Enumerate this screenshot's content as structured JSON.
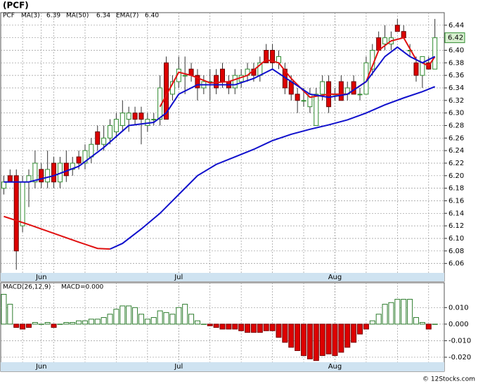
{
  "chart_data": [
    {
      "type": "candlestick",
      "title": "(PCF)",
      "symbol": "PCF",
      "open": [
        6.18,
        6.2,
        6.2,
        6.12,
        6.19,
        6.19,
        6.21,
        6.19,
        6.22,
        6.19,
        6.22,
        6.21,
        6.23,
        6.22,
        6.23,
        6.27,
        6.25,
        6.26,
        6.27,
        6.28,
        6.29,
        6.3,
        6.3,
        6.28,
        6.29,
        6.29,
        6.38,
        6.33,
        6.35,
        6.36,
        6.37,
        6.36,
        6.34,
        6.35,
        6.36,
        6.37,
        6.35,
        6.34,
        6.35,
        6.36,
        6.37,
        6.36,
        6.4,
        6.4,
        6.38,
        6.37,
        6.35,
        6.33,
        6.32,
        6.31,
        6.28,
        6.33,
        6.35,
        6.33,
        6.35,
        6.33,
        6.35,
        6.33,
        6.33,
        6.37,
        6.42,
        6.41,
        6.41,
        6.44,
        6.43,
        6.4,
        6.38,
        6.36,
        6.38,
        6.37
      ],
      "high": [
        6.2,
        6.21,
        6.21,
        6.2,
        6.21,
        6.24,
        6.22,
        6.24,
        6.23,
        6.23,
        6.24,
        6.23,
        6.24,
        6.25,
        6.26,
        6.28,
        6.28,
        6.29,
        6.3,
        6.32,
        6.31,
        6.31,
        6.31,
        6.3,
        6.3,
        6.36,
        6.39,
        6.36,
        6.39,
        6.39,
        6.38,
        6.37,
        6.36,
        6.37,
        6.37,
        6.38,
        6.36,
        6.37,
        6.37,
        6.38,
        6.38,
        6.39,
        6.41,
        6.41,
        6.4,
        6.38,
        6.36,
        6.34,
        6.34,
        6.34,
        6.34,
        6.36,
        6.36,
        6.34,
        6.36,
        6.35,
        6.36,
        6.34,
        6.39,
        6.41,
        6.43,
        6.44,
        6.43,
        6.45,
        6.44,
        6.41,
        6.39,
        6.39,
        6.39,
        6.45
      ],
      "low": [
        6.17,
        6.19,
        6.05,
        6.11,
        6.15,
        6.18,
        6.18,
        6.18,
        6.18,
        6.18,
        6.19,
        6.2,
        6.21,
        6.21,
        6.22,
        6.24,
        6.24,
        6.25,
        6.26,
        6.27,
        6.27,
        6.28,
        6.25,
        6.27,
        6.28,
        6.28,
        6.29,
        6.32,
        6.34,
        6.33,
        6.35,
        6.32,
        6.33,
        6.32,
        6.33,
        6.34,
        6.33,
        6.33,
        6.34,
        6.35,
        6.35,
        6.35,
        6.38,
        6.37,
        6.37,
        6.33,
        6.32,
        6.3,
        6.31,
        6.3,
        6.28,
        6.32,
        6.3,
        6.32,
        6.32,
        6.32,
        6.33,
        6.32,
        6.33,
        6.36,
        6.4,
        6.4,
        6.4,
        6.43,
        6.42,
        6.39,
        6.35,
        6.34,
        6.37,
        6.37
      ],
      "close": [
        6.19,
        6.19,
        6.08,
        6.19,
        6.2,
        6.22,
        6.19,
        6.21,
        6.19,
        6.22,
        6.2,
        6.22,
        6.22,
        6.24,
        6.25,
        6.25,
        6.26,
        6.28,
        6.29,
        6.3,
        6.3,
        6.29,
        6.29,
        6.29,
        6.29,
        6.34,
        6.29,
        6.35,
        6.37,
        6.36,
        6.36,
        6.34,
        6.35,
        6.35,
        6.34,
        6.35,
        6.34,
        6.36,
        6.36,
        6.37,
        6.36,
        6.38,
        6.38,
        6.38,
        6.39,
        6.34,
        6.33,
        6.32,
        6.32,
        6.33,
        6.33,
        6.35,
        6.31,
        6.33,
        6.32,
        6.34,
        6.33,
        6.33,
        6.38,
        6.4,
        6.4,
        6.42,
        6.42,
        6.43,
        6.42,
        6.4,
        6.36,
        6.39,
        6.37,
        6.42
      ],
      "up_color": "#2e8b2e",
      "down_color": "#dd0000",
      "lines": [
        {
          "name": "MA(3)",
          "last": 6.39,
          "color": "#e01010",
          "x": [
            25,
            28,
            30,
            33,
            36,
            39,
            42,
            44,
            46,
            49,
            52,
            55,
            58,
            60,
            62,
            64,
            66,
            68,
            69
          ],
          "values": [
            6.31,
            6.365,
            6.36,
            6.348,
            6.35,
            6.36,
            6.385,
            6.38,
            6.355,
            6.325,
            6.33,
            6.33,
            6.35,
            6.4,
            6.415,
            6.42,
            6.385,
            6.375,
            6.39
          ]
        },
        {
          "name": "MA(50)",
          "last": 6.34,
          "color": "#1010cc",
          "falling_color": "#e01010",
          "x": [
            0,
            4,
            8,
            12,
            15,
            17,
            19,
            22,
            25,
            28,
            31,
            34,
            37,
            40,
            43,
            46,
            49,
            52,
            55,
            58,
            61,
            64,
            67,
            69
          ],
          "values": [
            6.135,
            6.122,
            6.108,
            6.094,
            6.084,
            6.083,
            6.092,
            6.115,
            6.14,
            6.17,
            6.2,
            6.218,
            6.23,
            6.242,
            6.256,
            6.266,
            6.274,
            6.281,
            6.289,
            6.3,
            6.313,
            6.324,
            6.334,
            6.342
          ]
        },
        {
          "name": "EMA(7)",
          "last": {
            "value": 6.4,
            "label": "6.40"
          },
          "color": "#1010cc",
          "x": [
            0,
            4,
            8,
            12,
            16,
            20,
            24,
            26,
            28,
            31,
            34,
            37,
            40,
            43,
            46,
            49,
            52,
            55,
            58,
            61,
            63,
            65,
            67,
            69
          ],
          "values": [
            6.19,
            6.19,
            6.2,
            6.215,
            6.245,
            6.28,
            6.285,
            6.3,
            6.33,
            6.345,
            6.345,
            6.345,
            6.355,
            6.37,
            6.35,
            6.33,
            6.325,
            6.33,
            6.35,
            6.39,
            6.405,
            6.39,
            6.38,
            6.39
          ]
        }
      ],
      "last_price": {
        "value": 6.42,
        "label": "6.42"
      },
      "xlim": [
        -0.5,
        70.5
      ],
      "xticks": [
        {
          "value": 6,
          "label": "Jun"
        },
        {
          "value": 28,
          "label": "Jul"
        },
        {
          "value": 53,
          "label": "Aug"
        }
      ],
      "ylim": [
        6.045,
        6.46
      ],
      "yticks": [
        6.06,
        6.08,
        {
          "value": 6.1,
          "label": "6.10"
        },
        6.12,
        6.14,
        6.16,
        6.18,
        {
          "value": 6.2,
          "label": "6.20"
        },
        6.22,
        6.24,
        6.26,
        6.28,
        {
          "value": 6.3,
          "label": "6.30"
        },
        6.32,
        6.34,
        6.36,
        6.38,
        {
          "value": 6.4,
          "label": "6.40"
        },
        6.42,
        6.44
      ],
      "grid": true
    },
    {
      "type": "bar",
      "title": "MACD(26,12,9)",
      "subtitle": "MACD=0.000",
      "values": [
        0.018,
        0.012,
        -0.002,
        -0.003,
        -0.002,
        0.001,
        0.0,
        0.001,
        -0.002,
        0.0,
        0.001,
        0.001,
        0.002,
        0.002,
        0.003,
        0.003,
        0.004,
        0.006,
        0.009,
        0.011,
        0.011,
        0.01,
        0.006,
        0.003,
        0.004,
        0.008,
        0.007,
        0.006,
        0.01,
        0.012,
        0.006,
        0.002,
        0.0,
        -0.001,
        -0.002,
        -0.003,
        -0.003,
        -0.003,
        -0.004,
        -0.005,
        -0.005,
        -0.005,
        -0.004,
        -0.004,
        -0.008,
        -0.011,
        -0.014,
        -0.016,
        -0.019,
        -0.021,
        -0.022,
        -0.019,
        -0.018,
        -0.019,
        -0.017,
        -0.014,
        -0.011,
        -0.006,
        -0.003,
        0.002,
        0.006,
        0.012,
        0.013,
        0.015,
        0.015,
        0.015,
        0.004,
        0.001,
        -0.003,
        0.0
      ],
      "positive_color": "#2e7d2e",
      "negative_color": "#dd0000",
      "xlim": [
        -0.5,
        70.5
      ],
      "xticks": [
        {
          "value": 6,
          "label": "Jun"
        },
        {
          "value": 28,
          "label": "Jul"
        },
        {
          "value": 53,
          "label": "Aug"
        }
      ],
      "ylim": [
        -0.023,
        0.025
      ],
      "yticks": [
        {
          "value": 0.01,
          "label": "0.010"
        },
        {
          "value": 0,
          "label": "0.000"
        },
        {
          "value": -0.01,
          "label": "-0.010"
        },
        {
          "value": -0.02,
          "label": "-0.020"
        }
      ],
      "grid": true,
      "footer": "© 12Stocks.com"
    }
  ]
}
